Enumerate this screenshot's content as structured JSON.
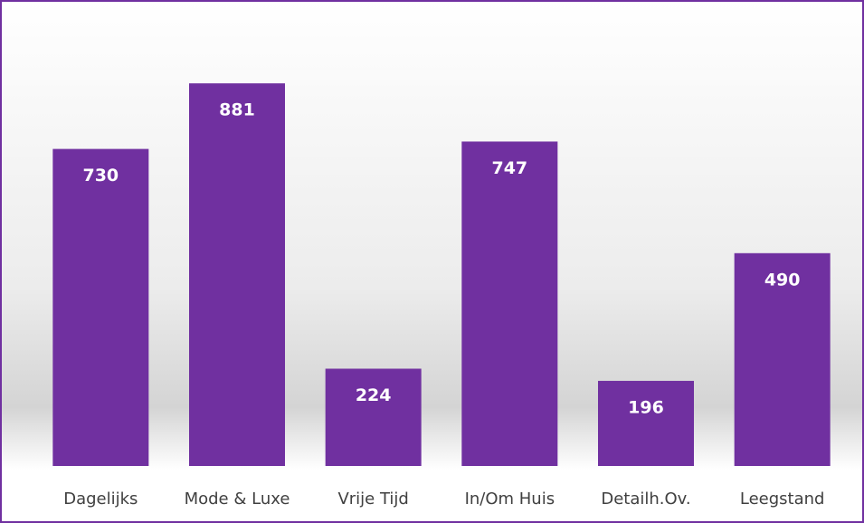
{
  "chart_data": {
    "type": "bar",
    "categories": [
      "Dagelijks",
      "Mode & Luxe",
      "Vrije Tijd",
      "In/Om Huis",
      "Detailh.Ov.",
      "Leegstand"
    ],
    "values": [
      730,
      881,
      224,
      747,
      196,
      490
    ],
    "color": "#7030a0",
    "ylim": [
      0,
      1000
    ]
  }
}
